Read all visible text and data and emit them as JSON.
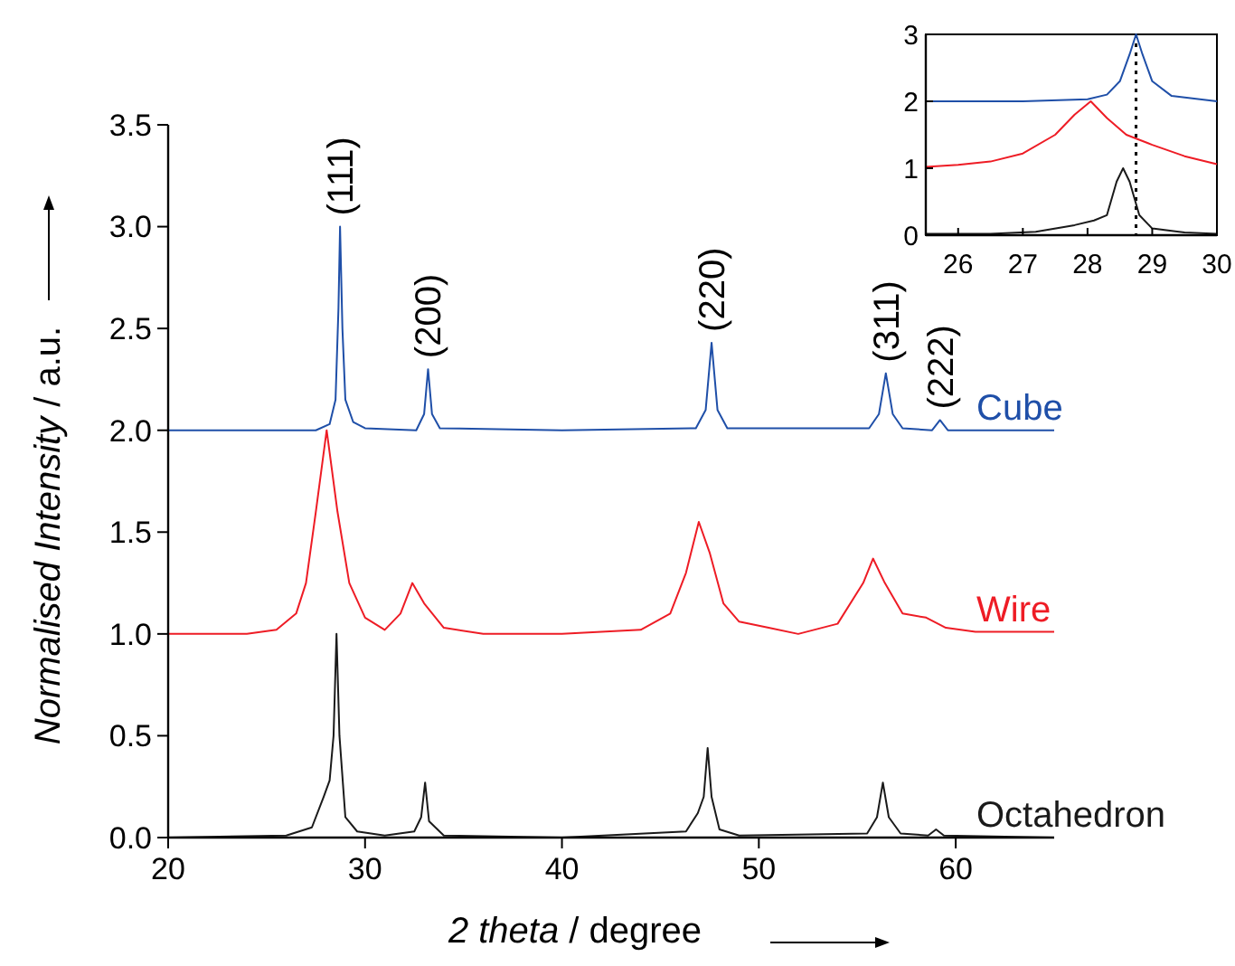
{
  "chart_data": [
    {
      "type": "line",
      "xlabel": "2 theta / degree",
      "ylabel": "Normalised Intensity / a.u.",
      "xlim": [
        20,
        65
      ],
      "xticks": [
        20,
        30,
        40,
        50,
        60
      ],
      "ylim": [
        0,
        3.5
      ],
      "yticks": [
        {
          "value": 0,
          "label": "0.0"
        },
        {
          "value": 0.5,
          "label": "0.5"
        },
        {
          "value": 1,
          "label": "1.0"
        },
        {
          "value": 1.5,
          "label": "1.5"
        },
        {
          "value": 2,
          "label": "2.0"
        },
        {
          "value": 2.5,
          "label": "2.5"
        },
        {
          "value": 3,
          "label": "3.0"
        },
        {
          "value": 3.5,
          "label": "3.5"
        }
      ],
      "series": [
        {
          "name": "Cube",
          "color": "#1f4fa8",
          "x": [
            20,
            27.5,
            28.2,
            28.5,
            28.65,
            28.73,
            28.85,
            29.0,
            29.4,
            30,
            32.6,
            33.0,
            33.2,
            33.4,
            33.8,
            40,
            46.8,
            47.3,
            47.6,
            47.9,
            48.4,
            55.6,
            56.1,
            56.45,
            56.8,
            57.3,
            58.8,
            59.2,
            59.6,
            65
          ],
          "values": [
            2.0,
            2.0,
            2.03,
            2.15,
            2.6,
            3.0,
            2.5,
            2.15,
            2.04,
            2.01,
            2.0,
            2.08,
            2.3,
            2.08,
            2.01,
            2.0,
            2.01,
            2.1,
            2.43,
            2.1,
            2.01,
            2.01,
            2.08,
            2.28,
            2.08,
            2.01,
            2.0,
            2.05,
            2.0,
            2.0
          ]
        },
        {
          "name": "Wire",
          "color": "#ee1c25",
          "x": [
            20,
            24,
            25.5,
            26.5,
            27.0,
            27.5,
            28.05,
            28.6,
            29.2,
            30,
            31,
            31.8,
            32.4,
            33,
            34,
            36,
            40,
            44,
            45.5,
            46.3,
            46.95,
            47.5,
            48.2,
            49,
            50.5,
            52,
            54,
            55.3,
            55.8,
            56.4,
            57.3,
            58.5,
            59.5,
            61,
            65
          ],
          "values": [
            1.0,
            1.0,
            1.02,
            1.1,
            1.25,
            1.6,
            2.0,
            1.6,
            1.25,
            1.08,
            1.02,
            1.1,
            1.25,
            1.15,
            1.03,
            1.0,
            1.0,
            1.02,
            1.1,
            1.3,
            1.55,
            1.4,
            1.15,
            1.06,
            1.03,
            1.0,
            1.05,
            1.25,
            1.37,
            1.25,
            1.1,
            1.08,
            1.03,
            1.01,
            1.01
          ]
        },
        {
          "name": "Octahedron",
          "color": "#1a1a1a",
          "x": [
            20,
            26,
            27.3,
            27.9,
            28.2,
            28.4,
            28.55,
            28.7,
            29.0,
            29.6,
            31,
            32.5,
            32.85,
            33.05,
            33.25,
            34,
            40,
            46.3,
            46.9,
            47.2,
            47.4,
            47.6,
            48,
            49,
            55.5,
            56.0,
            56.3,
            56.6,
            57.2,
            58.6,
            59.0,
            59.4,
            65
          ],
          "values": [
            0,
            0.01,
            0.05,
            0.2,
            0.28,
            0.5,
            1.0,
            0.5,
            0.1,
            0.03,
            0.01,
            0.03,
            0.1,
            0.27,
            0.08,
            0.01,
            0.0,
            0.03,
            0.12,
            0.2,
            0.44,
            0.2,
            0.04,
            0.01,
            0.02,
            0.1,
            0.27,
            0.1,
            0.02,
            0.01,
            0.04,
            0.01,
            0.0
          ]
        }
      ],
      "annotations": [
        {
          "text": "(111)",
          "x": 28.73,
          "y": 3.0
        },
        {
          "text": "(200)",
          "x": 33.2,
          "y": 2.3
        },
        {
          "text": "(220)",
          "x": 47.6,
          "y": 2.43
        },
        {
          "text": "(311)",
          "x": 56.45,
          "y": 2.28
        },
        {
          "text": "(222)",
          "x": 59.2,
          "y": 2.05
        }
      ]
    },
    {
      "type": "line",
      "xlim": [
        25.5,
        30
      ],
      "xticks": [
        26,
        27,
        28,
        29,
        30
      ],
      "ylim": [
        0,
        3
      ],
      "yticks": [
        0,
        1,
        2,
        3
      ],
      "series": [
        {
          "color": "#1f4fa8",
          "x": [
            25.5,
            27,
            28,
            28.3,
            28.5,
            28.65,
            28.75,
            28.85,
            29,
            29.3,
            30
          ],
          "values": [
            2,
            2,
            2.03,
            2.1,
            2.3,
            2.7,
            3.0,
            2.7,
            2.3,
            2.08,
            2.0
          ]
        },
        {
          "color": "#ee1c25",
          "x": [
            25.5,
            26,
            26.5,
            27,
            27.5,
            27.8,
            28.05,
            28.3,
            28.6,
            29,
            29.5,
            30
          ],
          "values": [
            1.02,
            1.05,
            1.1,
            1.22,
            1.5,
            1.8,
            2.0,
            1.75,
            1.5,
            1.35,
            1.18,
            1.06
          ]
        },
        {
          "color": "#1a1a1a",
          "x": [
            25.5,
            26.5,
            27.2,
            27.8,
            28.1,
            28.3,
            28.45,
            28.55,
            28.65,
            28.8,
            29,
            29.5,
            30
          ],
          "values": [
            0.02,
            0.02,
            0.05,
            0.15,
            0.22,
            0.3,
            0.8,
            1.0,
            0.8,
            0.3,
            0.1,
            0.04,
            0.02
          ]
        }
      ],
      "ref_lines": [
        {
          "axis": "x",
          "value": 28.75,
          "color": "#000000",
          "line_style": "dotted"
        }
      ]
    }
  ]
}
